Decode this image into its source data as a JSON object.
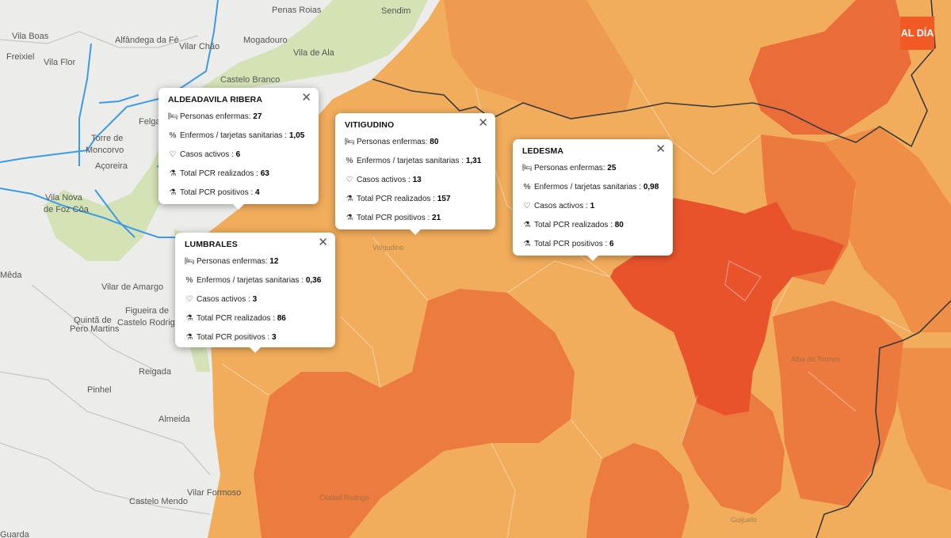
{
  "map": {
    "places": [
      {
        "id": "pl1",
        "name": "Penas Roias"
      },
      {
        "id": "pl2",
        "name": "Sendim"
      },
      {
        "id": "pl3",
        "name": "Vila Boas"
      },
      {
        "id": "pl4",
        "name": "Alfândega da Fé"
      },
      {
        "id": "pl5",
        "name": "Mogadouro"
      },
      {
        "id": "pl6",
        "name": "Freixiel"
      },
      {
        "id": "pl7",
        "name": "Vila Flor"
      },
      {
        "id": "pl8",
        "name": "Vilar Chão"
      },
      {
        "id": "pl9",
        "name": "Vila de Ala"
      },
      {
        "id": "pl10",
        "name": "Castelo Branco"
      },
      {
        "id": "pl11",
        "name": "Felgar"
      },
      {
        "id": "pl12",
        "name": "Torre de"
      },
      {
        "id": "pl13",
        "name": "Moncorvo"
      },
      {
        "id": "pl14",
        "name": "Açoreira"
      },
      {
        "id": "pl15",
        "name": "Vila Nova"
      },
      {
        "id": "pl16",
        "name": "de Foz Côa"
      },
      {
        "id": "pl17",
        "name": "Mêda"
      },
      {
        "id": "pl18",
        "name": "Vilar de Amargo"
      },
      {
        "id": "pl19",
        "name": "Figueira de"
      },
      {
        "id": "pl20",
        "name": "Castelo Rodrigo"
      },
      {
        "id": "pl21",
        "name": "Quintã de"
      },
      {
        "id": "pl22",
        "name": "Pero Martins"
      },
      {
        "id": "pl23",
        "name": "Reigada"
      },
      {
        "id": "pl24",
        "name": "Pinhel"
      },
      {
        "id": "pl25",
        "name": "Almeida"
      },
      {
        "id": "pl26",
        "name": "Castelo Mendo"
      },
      {
        "id": "pl27",
        "name": "Vilar Formoso"
      },
      {
        "id": "pl28",
        "name": "Guarda"
      },
      {
        "id": "pl29",
        "name": "Vitigudino"
      },
      {
        "id": "pl30",
        "name": "Alba de Tormes"
      },
      {
        "id": "pl31",
        "name": "Ciudad Rodrigo"
      },
      {
        "id": "pl32",
        "name": "Guijuelo"
      }
    ]
  },
  "popups": [
    {
      "id": "aldeadavila",
      "title": "ALDEADAVILA RIBERA",
      "close": "✕",
      "rows": [
        {
          "icon": "bed-icon",
          "glyph": "🛏",
          "label": "Personas enfermas: ",
          "value": "27"
        },
        {
          "icon": "percent-icon",
          "glyph": "%",
          "label": "Enfermos / tarjetas sanitarias : ",
          "value": "1,05"
        },
        {
          "icon": "heartbeat-icon",
          "glyph": "♡",
          "label": "Casos activos : ",
          "value": "6"
        },
        {
          "icon": "flask-icon",
          "glyph": "⚗",
          "label": "Total PCR realizados : ",
          "value": "63"
        },
        {
          "icon": "flask-icon",
          "glyph": "⚗",
          "label": "Total PCR positivos : ",
          "value": "4"
        }
      ]
    },
    {
      "id": "vitigudino",
      "title": "VITIGUDINO",
      "close": "✕",
      "rows": [
        {
          "icon": "bed-icon",
          "glyph": "🛏",
          "label": "Personas enfermas: ",
          "value": "80"
        },
        {
          "icon": "percent-icon",
          "glyph": "%",
          "label": "Enfermos / tarjetas sanitarias : ",
          "value": "1,31"
        },
        {
          "icon": "heartbeat-icon",
          "glyph": "♡",
          "label": "Casos activos : ",
          "value": "13"
        },
        {
          "icon": "flask-icon",
          "glyph": "⚗",
          "label": "Total PCR realizados : ",
          "value": "157"
        },
        {
          "icon": "flask-icon",
          "glyph": "⚗",
          "label": "Total PCR positivos : ",
          "value": "21"
        }
      ]
    },
    {
      "id": "ledesma",
      "title": "LEDESMA",
      "close": "✕",
      "rows": [
        {
          "icon": "bed-icon",
          "glyph": "🛏",
          "label": "Personas enfermas: ",
          "value": "25"
        },
        {
          "icon": "percent-icon",
          "glyph": "%",
          "label": "Enfermos / tarjetas sanitarias : ",
          "value": "0,98"
        },
        {
          "icon": "heartbeat-icon",
          "glyph": "♡",
          "label": "Casos activos : ",
          "value": "1"
        },
        {
          "icon": "flask-icon",
          "glyph": "⚗",
          "label": "Total PCR realizados : ",
          "value": "80"
        },
        {
          "icon": "flask-icon",
          "glyph": "⚗",
          "label": "Total PCR positivos : ",
          "value": "6"
        }
      ]
    },
    {
      "id": "lumbrales",
      "title": "LUMBRALES",
      "close": "✕",
      "rows": [
        {
          "icon": "bed-icon",
          "glyph": "🛏",
          "label": "Personas enfermas: ",
          "value": "12"
        },
        {
          "icon": "percent-icon",
          "glyph": "%",
          "label": "Enfermos / tarjetas sanitarias : ",
          "value": "0,36"
        },
        {
          "icon": "heartbeat-icon",
          "glyph": "♡",
          "label": "Casos activos : ",
          "value": "3"
        },
        {
          "icon": "flask-icon",
          "glyph": "⚗",
          "label": "Total PCR realizados : ",
          "value": "86"
        },
        {
          "icon": "flask-icon",
          "glyph": "⚗",
          "label": "Total PCR positivos : ",
          "value": "3"
        }
      ]
    }
  ],
  "logo": {
    "text": "AL DÍA"
  },
  "colors": {
    "light_orange": "#f2ad5c",
    "mid_orange": "#ef8c47",
    "dark_orange": "#ea6a38",
    "red_orange": "#e7502b",
    "portugal_grey": "#ececea",
    "portugal_green": "#d3e2b4",
    "river_blue": "#3d9be3",
    "logo_bg": "#f15a24"
  }
}
